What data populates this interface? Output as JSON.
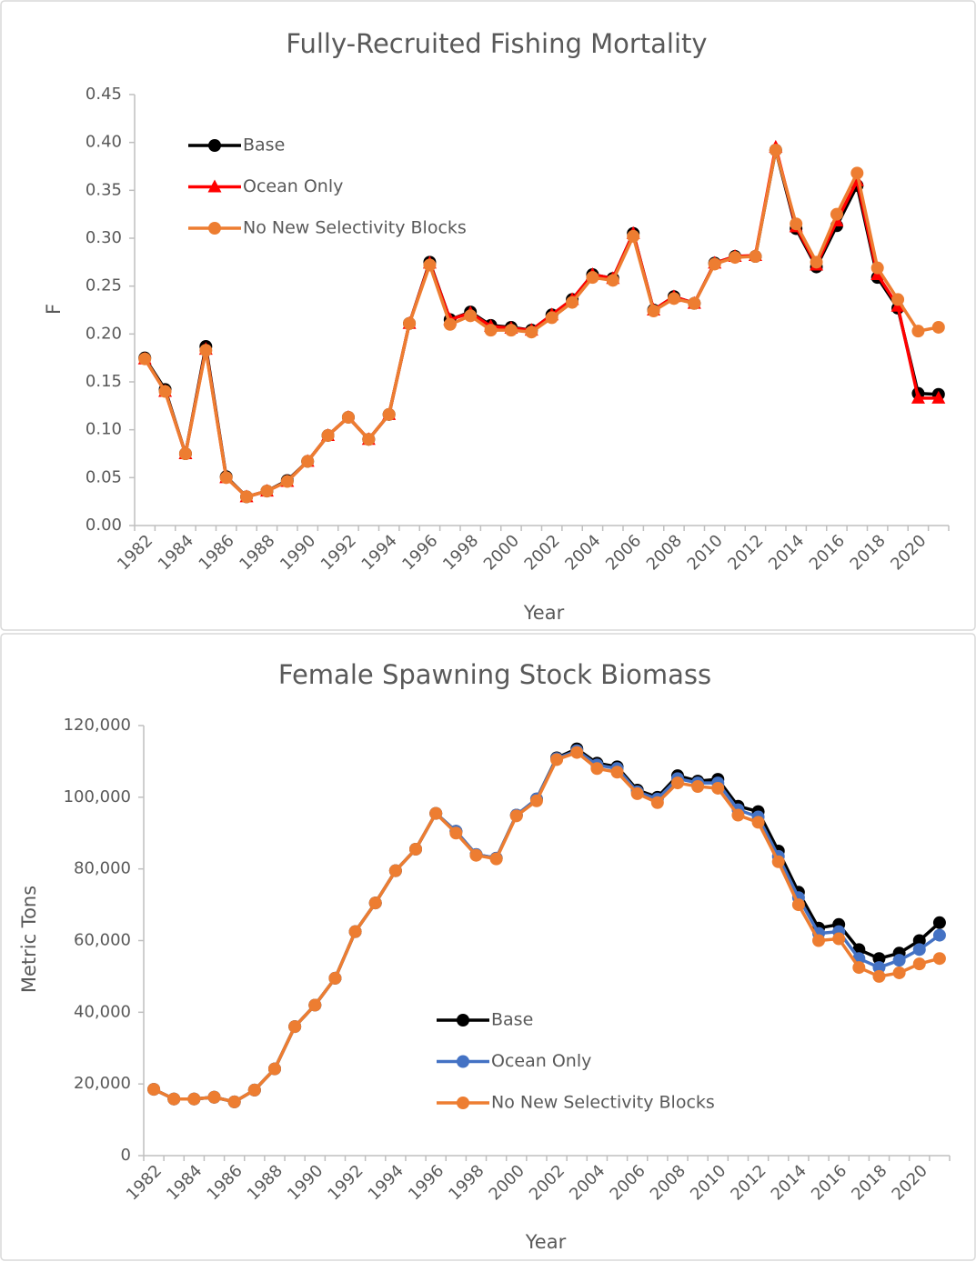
{
  "chart_data": [
    {
      "type": "line",
      "title": "Fully-Recruited Fishing Mortality",
      "x_label": "Year",
      "y_label": "F",
      "categories": [
        "1982",
        null,
        "1984",
        null,
        "1986",
        null,
        "1988",
        null,
        "1990",
        null,
        "1992",
        null,
        "1994",
        null,
        "1996",
        null,
        "1998",
        null,
        "2000",
        null,
        "2002",
        null,
        "2004",
        null,
        "2006",
        null,
        "2008",
        null,
        "2010",
        null,
        "2012",
        null,
        "2014",
        null,
        "2016",
        null,
        "2018",
        null,
        "2020",
        null
      ],
      "series": [
        {
          "name": "Base",
          "color": "#000000",
          "marker": "circle",
          "values": [
            0.175,
            0.142,
            0.075,
            0.187,
            0.051,
            0.03,
            0.036,
            0.047,
            0.067,
            0.094,
            0.113,
            0.09,
            0.116,
            0.211,
            0.275,
            0.215,
            0.223,
            0.209,
            0.207,
            0.204,
            0.22,
            0.236,
            0.262,
            0.258,
            0.305,
            0.225,
            0.239,
            0.232,
            0.274,
            0.281,
            0.281,
            0.392,
            0.31,
            0.27,
            0.313,
            0.355,
            0.259,
            0.227,
            0.138,
            0.137
          ]
        },
        {
          "name": "Ocean Only",
          "color": "#ff0000",
          "marker": "triangle",
          "values": [
            0.174,
            0.14,
            0.075,
            0.184,
            0.05,
            0.03,
            0.036,
            0.046,
            0.067,
            0.094,
            0.113,
            0.09,
            0.116,
            0.211,
            0.274,
            0.215,
            0.222,
            0.208,
            0.206,
            0.204,
            0.22,
            0.236,
            0.262,
            0.258,
            0.305,
            0.225,
            0.239,
            0.232,
            0.274,
            0.281,
            0.282,
            0.395,
            0.312,
            0.272,
            0.318,
            0.36,
            0.262,
            0.229,
            0.133,
            0.133
          ]
        },
        {
          "name": "No New Selectivity Blocks",
          "color": "#ed7d31",
          "marker": "circle",
          "values": [
            0.174,
            0.14,
            0.075,
            0.183,
            0.05,
            0.03,
            0.036,
            0.046,
            0.067,
            0.094,
            0.113,
            0.09,
            0.116,
            0.211,
            0.272,
            0.21,
            0.219,
            0.204,
            0.204,
            0.202,
            0.217,
            0.233,
            0.259,
            0.256,
            0.302,
            0.224,
            0.237,
            0.232,
            0.273,
            0.28,
            0.281,
            0.392,
            0.315,
            0.275,
            0.325,
            0.368,
            0.269,
            0.236,
            0.203,
            0.207
          ]
        }
      ],
      "ylim": [
        0,
        0.45
      ],
      "yticks": [
        {
          "value": 0,
          "label": "0.00"
        },
        {
          "value": 0.05,
          "label": "0.05"
        },
        {
          "value": 0.1,
          "label": "0.10"
        },
        {
          "value": 0.15,
          "label": "0.15"
        },
        {
          "value": 0.2,
          "label": "0.20"
        },
        {
          "value": 0.25,
          "label": "0.25"
        },
        {
          "value": 0.3,
          "label": "0.30"
        },
        {
          "value": 0.35,
          "label": "0.35"
        },
        {
          "value": 0.4,
          "label": "0.40"
        },
        {
          "value": 0.45,
          "label": "0.45"
        }
      ],
      "grid": false,
      "legend": "upper left"
    },
    {
      "type": "line",
      "title": "Female Spawning Stock Biomass",
      "x_label": "Year",
      "y_label": "Metric Tons",
      "categories": [
        "1982",
        null,
        "1984",
        null,
        "1986",
        null,
        "1988",
        null,
        "1990",
        null,
        "1992",
        null,
        "1994",
        null,
        "1996",
        null,
        "1998",
        null,
        "2000",
        null,
        "2002",
        null,
        "2004",
        null,
        "2006",
        null,
        "2008",
        null,
        "2010",
        null,
        "2012",
        null,
        "2014",
        null,
        "2016",
        null,
        "2018",
        null,
        "2020",
        null
      ],
      "series": [
        {
          "name": "Base",
          "color": "#000000",
          "marker": "circle",
          "values": [
            18500,
            15800,
            15800,
            16300,
            15000,
            18300,
            24200,
            36000,
            42000,
            49500,
            62500,
            70500,
            79500,
            85500,
            95500,
            90500,
            84000,
            83000,
            95000,
            99500,
            111000,
            113500,
            109500,
            108500,
            102000,
            100000,
            106000,
            104500,
            105000,
            97500,
            96000,
            85000,
            73500,
            63500,
            64500,
            57500,
            55000,
            56500,
            60000,
            65000
          ]
        },
        {
          "name": "Ocean Only",
          "color": "#4472c4",
          "marker": "circle",
          "values": [
            18500,
            15800,
            15800,
            16300,
            15000,
            18300,
            24200,
            36000,
            42000,
            49500,
            62500,
            70500,
            79500,
            85500,
            95500,
            90500,
            84000,
            83000,
            95000,
            99500,
            110800,
            113000,
            109000,
            108000,
            101500,
            99500,
            105200,
            104000,
            104000,
            96500,
            94500,
            83500,
            72000,
            62000,
            62500,
            55000,
            52500,
            54500,
            57500,
            61500
          ]
        },
        {
          "name": "No New Selectivity Blocks",
          "color": "#ed7d31",
          "marker": "circle",
          "values": [
            18500,
            15800,
            15800,
            16300,
            15000,
            18300,
            24200,
            36000,
            42000,
            49500,
            62500,
            70500,
            79500,
            85500,
            95500,
            90000,
            83800,
            82800,
            94800,
            99000,
            110500,
            112500,
            108000,
            107000,
            101000,
            98500,
            104000,
            103000,
            102500,
            95000,
            93000,
            82000,
            70000,
            60000,
            60500,
            52500,
            50000,
            51000,
            53500,
            55000
          ]
        }
      ],
      "ylim": [
        0,
        120000
      ],
      "yticks": [
        0,
        {
          "value": 20000,
          "label": "20,000"
        },
        {
          "value": 40000,
          "label": "40,000"
        },
        {
          "value": 60000,
          "label": "60,000"
        },
        {
          "value": 80000,
          "label": "80,000"
        },
        {
          "value": 100000,
          "label": "100,000"
        },
        {
          "value": 120000,
          "label": "120,000"
        }
      ],
      "grid": false,
      "legend": "lower center"
    }
  ]
}
